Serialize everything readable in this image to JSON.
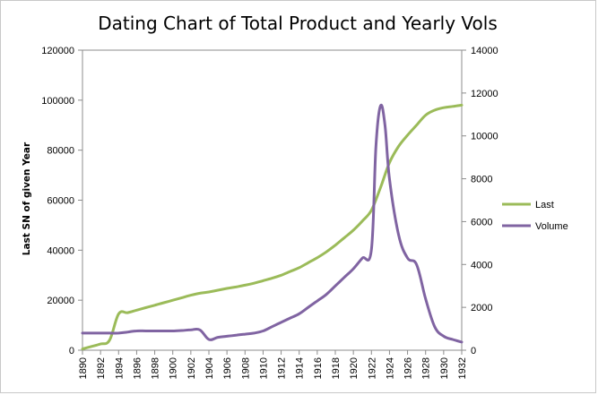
{
  "chart_data": {
    "type": "line",
    "title": "Dating Chart of Total Product and Yearly Vols",
    "ylabel": "Last SN of given Year",
    "xlabel": "",
    "x_ticks": [
      "1890",
      "1892",
      "1894",
      "1896",
      "1898",
      "1900",
      "1902",
      "1904",
      "1906",
      "1908",
      "1910",
      "1912",
      "1914",
      "1916",
      "1918",
      "1920",
      "1922",
      "1924",
      "1926",
      "1928",
      "1930",
      "1932"
    ],
    "xlim": [
      1890,
      1932
    ],
    "y_left": {
      "min": 0,
      "max": 120000,
      "ticks": [
        "0",
        "20000",
        "40000",
        "60000",
        "80000",
        "100000",
        "120000"
      ]
    },
    "y_right": {
      "min": 0,
      "max": 14000,
      "ticks": [
        "0",
        "2000",
        "4000",
        "6000",
        "8000",
        "10000",
        "12000",
        "14000"
      ]
    },
    "grid": false,
    "legend_position": "right",
    "series": [
      {
        "name": "Last",
        "axis": "left",
        "color": "#9BBB59",
        "x": [
          1890,
          1891,
          1892,
          1893,
          1894,
          1895,
          1896,
          1897,
          1898,
          1899,
          1900,
          1901,
          1902,
          1903,
          1904,
          1905,
          1906,
          1907,
          1908,
          1909,
          1910,
          1911,
          1912,
          1913,
          1914,
          1915,
          1916,
          1917,
          1918,
          1919,
          1920,
          1921,
          1922,
          1923,
          1924,
          1925,
          1926,
          1927,
          1928,
          1929,
          1930,
          1931,
          1932
        ],
        "values": [
          500,
          1500,
          2500,
          4000,
          14500,
          15000,
          16000,
          17000,
          18000,
          19000,
          20000,
          21000,
          22000,
          22800,
          23300,
          24000,
          24700,
          25300,
          26000,
          26800,
          27800,
          28800,
          30000,
          31500,
          33000,
          35000,
          37000,
          39300,
          42000,
          45000,
          48000,
          51700,
          56000,
          65000,
          75000,
          81500,
          86000,
          90000,
          94000,
          96000,
          97000,
          97500,
          98000
        ]
      },
      {
        "name": "Volume",
        "axis": "right",
        "color": "#8064A2",
        "x": [
          1890,
          1891,
          1892,
          1893,
          1894,
          1895,
          1896,
          1897,
          1898,
          1899,
          1900,
          1901,
          1902,
          1903,
          1904,
          1905,
          1906,
          1907,
          1908,
          1909,
          1910,
          1911,
          1912,
          1913,
          1914,
          1915,
          1916,
          1917,
          1918,
          1919,
          1920,
          1921,
          1922,
          1922.5,
          1923,
          1923.5,
          1924,
          1925,
          1926,
          1927,
          1928,
          1929,
          1930,
          1931,
          1932
        ],
        "values": [
          800,
          800,
          800,
          800,
          800,
          850,
          900,
          900,
          900,
          900,
          900,
          920,
          950,
          950,
          500,
          600,
          650,
          700,
          750,
          800,
          900,
          1100,
          1300,
          1500,
          1700,
          2000,
          2300,
          2600,
          3000,
          3400,
          3800,
          4300,
          4700,
          9500,
          11400,
          10500,
          8000,
          5400,
          4300,
          4000,
          2400,
          1100,
          650,
          500,
          380
        ]
      }
    ]
  }
}
